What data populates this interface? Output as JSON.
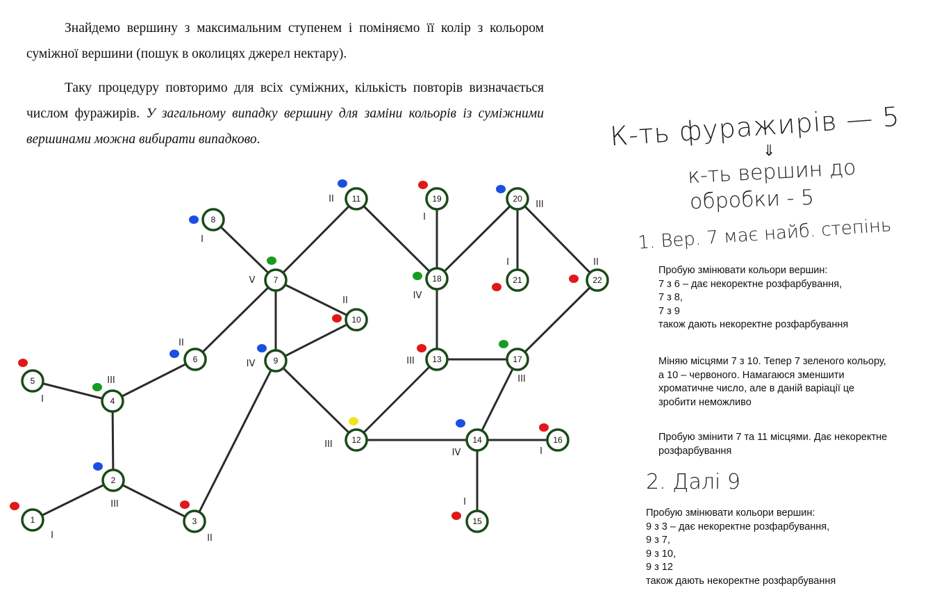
{
  "document": {
    "paragraph1": "Знайдемо вершину з максимальним ступенем і поміняємо її колір з кольором суміжної вершини (пошук в околицях джерел нектару).",
    "paragraph2_normal": "Таку процедуру повторимо для всіх суміжних, кількість повторів визначається числом фуражирів. ",
    "paragraph2_italic": "У загальному випадку вершину для заміни кольорів із суміжними вершинами можна вибирати випадково",
    "paragraph2_end": "."
  },
  "handwriting": {
    "line1": "К-ть фуражирів — 5",
    "arrow": "⇓",
    "line2": "к-ть вершин до",
    "line3": "обробки - 5",
    "step1": "1. Вер. 7 має найб. степінь",
    "step2": "2. Далі 9"
  },
  "notes": {
    "block1": [
      "Пробую змінювати кольори вершин:",
      "7 з 6 – дає некоректне розфарбування,",
      "7 з 8,",
      "7 з 9",
      "також дають некоректне розфарбування"
    ],
    "block2": "Міняю місцями 7 з 10. Тепер 7  зеленого кольору, а 10 – червоного. Намагаюся зменшити хроматичне число, але в даній варіації це зробити неможливо",
    "block3": "Пробую змінити 7 та 11 місцями. Дає некоректне розфарбування",
    "block4": [
      "Пробую змінювати кольори вершин:",
      "9 з 3 – дає некоректне розфарбування,",
      "9 з 7,",
      "9 з 10,",
      "9 з 12",
      "також дають некоректне розфарбування"
    ]
  },
  "colors": {
    "red": "#e01818",
    "blue": "#1a4fe0",
    "green": "#169c22",
    "yellow": "#f5e21a",
    "node_border": "#1a4a1a"
  },
  "graph": {
    "nodes": [
      {
        "id": "1",
        "dot": "red",
        "deg": "I"
      },
      {
        "id": "2",
        "dot": "blue",
        "deg": "III"
      },
      {
        "id": "3",
        "dot": "red",
        "deg": "II"
      },
      {
        "id": "4",
        "dot": "green",
        "deg": "III"
      },
      {
        "id": "5",
        "dot": "red",
        "deg": "I"
      },
      {
        "id": "6",
        "dot": "blue",
        "deg": "II"
      },
      {
        "id": "7",
        "dot": "green",
        "deg": "V"
      },
      {
        "id": "8",
        "dot": "blue",
        "deg": "I"
      },
      {
        "id": "9",
        "dot": "blue",
        "deg": "IV"
      },
      {
        "id": "10",
        "dot": "red",
        "deg": "II"
      },
      {
        "id": "11",
        "dot": "blue",
        "deg": "II"
      },
      {
        "id": "12",
        "dot": "yellow",
        "deg": "III"
      },
      {
        "id": "13",
        "dot": "red",
        "deg": "III"
      },
      {
        "id": "14",
        "dot": "blue",
        "deg": "IV"
      },
      {
        "id": "15",
        "dot": "red",
        "deg": "I"
      },
      {
        "id": "16",
        "dot": "red",
        "deg": "I"
      },
      {
        "id": "17",
        "dot": "green",
        "deg": "III"
      },
      {
        "id": "18",
        "dot": "green",
        "deg": "IV"
      },
      {
        "id": "19",
        "dot": "red",
        "deg": "I"
      },
      {
        "id": "20",
        "dot": "blue",
        "deg": "III"
      },
      {
        "id": "21",
        "dot": "red",
        "deg": "I"
      },
      {
        "id": "22",
        "dot": "red",
        "deg": "II"
      }
    ],
    "edges": [
      [
        "1",
        "2"
      ],
      [
        "2",
        "3"
      ],
      [
        "2",
        "4"
      ],
      [
        "4",
        "5"
      ],
      [
        "4",
        "6"
      ],
      [
        "6",
        "7"
      ],
      [
        "7",
        "8"
      ],
      [
        "7",
        "9"
      ],
      [
        "7",
        "10"
      ],
      [
        "7",
        "11"
      ],
      [
        "9",
        "10"
      ],
      [
        "9",
        "3"
      ],
      [
        "9",
        "12"
      ],
      [
        "11",
        "18"
      ],
      [
        "12",
        "13"
      ],
      [
        "12",
        "14"
      ],
      [
        "13",
        "18"
      ],
      [
        "13",
        "17"
      ],
      [
        "14",
        "15"
      ],
      [
        "14",
        "16"
      ],
      [
        "14",
        "17"
      ],
      [
        "17",
        "22"
      ],
      [
        "18",
        "19"
      ],
      [
        "18",
        "20"
      ],
      [
        "20",
        "21"
      ],
      [
        "20",
        "22"
      ]
    ]
  }
}
